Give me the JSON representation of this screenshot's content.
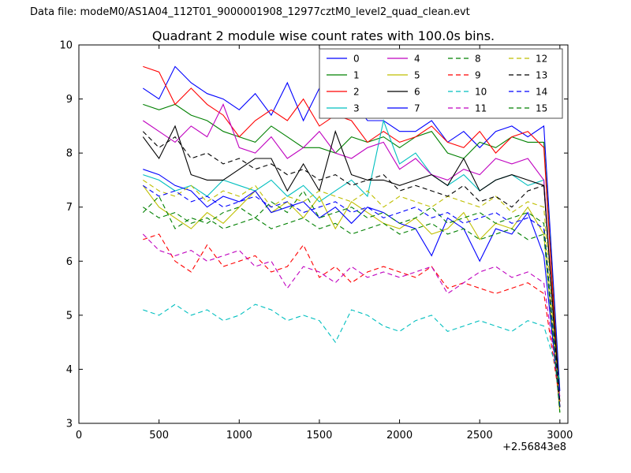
{
  "header": {
    "data_file_label": "Data file: modeM0/AS1A04_112T01_9000001908_12977cztM0_level2_quad_clean.evt"
  },
  "chart_data": {
    "type": "line",
    "title": "Quadrant 2 module wise count rates with 100.0s bins.",
    "xlabel": "",
    "ylabel": "",
    "xlim": [
      0,
      3050
    ],
    "ylim": [
      3,
      10
    ],
    "xticks": [
      0,
      500,
      1000,
      1500,
      2000,
      2500,
      3000
    ],
    "yticks": [
      3,
      4,
      5,
      6,
      7,
      8,
      9,
      10
    ],
    "x_offset_text": "+2.56843e8",
    "grid": false,
    "legend_position": "upper center",
    "x": [
      400,
      500,
      600,
      700,
      800,
      900,
      1000,
      1100,
      1200,
      1300,
      1400,
      1500,
      1600,
      1700,
      1800,
      1900,
      2000,
      2100,
      2200,
      2300,
      2400,
      2500,
      2600,
      2700,
      2800,
      2900,
      3000
    ],
    "series": [
      {
        "name": "0",
        "color": "#0000ff",
        "style": "solid",
        "values": [
          9.2,
          9.0,
          9.6,
          9.3,
          9.1,
          9.0,
          8.8,
          9.1,
          8.7,
          9.3,
          8.6,
          9.2,
          9.0,
          9.0,
          8.6,
          8.6,
          8.4,
          8.4,
          8.6,
          8.2,
          8.4,
          8.1,
          8.4,
          8.5,
          8.3,
          8.5,
          3.6
        ]
      },
      {
        "name": "1",
        "color": "#008000",
        "style": "solid",
        "values": [
          8.9,
          8.8,
          8.9,
          8.7,
          8.6,
          8.4,
          8.3,
          8.2,
          8.5,
          8.3,
          8.1,
          8.1,
          8.0,
          8.3,
          8.2,
          8.3,
          8.1,
          8.3,
          8.4,
          8.0,
          7.9,
          8.2,
          8.1,
          8.3,
          8.2,
          8.2,
          3.4
        ]
      },
      {
        "name": "2",
        "color": "#ff0000",
        "style": "solid",
        "values": [
          9.6,
          9.5,
          8.9,
          9.2,
          8.9,
          8.7,
          8.3,
          8.6,
          8.8,
          8.6,
          9.0,
          8.5,
          8.7,
          8.6,
          8.2,
          8.4,
          8.2,
          8.3,
          8.5,
          8.2,
          8.1,
          8.4,
          8.0,
          8.3,
          8.4,
          8.1,
          3.3
        ]
      },
      {
        "name": "3",
        "color": "#00bfbf",
        "style": "solid",
        "values": [
          7.6,
          7.5,
          7.3,
          7.4,
          7.2,
          7.5,
          7.4,
          7.3,
          7.5,
          7.2,
          7.4,
          7.1,
          7.3,
          7.5,
          7.2,
          8.6,
          7.8,
          8.0,
          7.6,
          7.4,
          7.6,
          7.3,
          7.5,
          7.6,
          7.4,
          7.5,
          3.2
        ]
      },
      {
        "name": "4",
        "color": "#bf00bf",
        "style": "solid",
        "values": [
          8.6,
          8.4,
          8.2,
          8.5,
          8.3,
          8.9,
          8.1,
          8.0,
          8.3,
          7.9,
          8.1,
          8.4,
          8.0,
          7.9,
          8.1,
          8.2,
          7.7,
          7.9,
          7.6,
          7.5,
          7.7,
          7.6,
          7.9,
          7.8,
          7.9,
          7.5,
          3.3
        ]
      },
      {
        "name": "5",
        "color": "#bfbf00",
        "style": "solid",
        "values": [
          7.4,
          7.0,
          6.8,
          6.6,
          6.9,
          6.7,
          7.0,
          7.3,
          6.9,
          7.1,
          6.8,
          7.2,
          6.6,
          7.1,
          6.9,
          6.7,
          6.6,
          6.8,
          6.5,
          6.6,
          6.9,
          6.4,
          6.7,
          6.6,
          7.0,
          6.5,
          3.2
        ]
      },
      {
        "name": "6",
        "color": "#000000",
        "style": "solid",
        "values": [
          8.3,
          7.9,
          8.5,
          7.6,
          7.5,
          7.5,
          7.7,
          7.9,
          7.9,
          7.3,
          7.8,
          7.3,
          8.4,
          7.6,
          7.5,
          7.5,
          7.4,
          7.5,
          7.6,
          7.4,
          7.9,
          7.3,
          7.5,
          7.6,
          7.5,
          7.4,
          3.4
        ]
      },
      {
        "name": "7",
        "color": "#0000ff",
        "style": "solid",
        "values": [
          7.7,
          7.6,
          7.4,
          7.3,
          7.0,
          7.2,
          7.1,
          7.3,
          6.9,
          7.0,
          7.1,
          6.8,
          7.0,
          6.7,
          7.0,
          6.9,
          6.7,
          6.6,
          6.1,
          6.8,
          6.6,
          6.0,
          6.6,
          6.5,
          6.9,
          6.1,
          3.3
        ]
      },
      {
        "name": "8",
        "color": "#008000",
        "style": "dashed",
        "values": [
          6.9,
          7.2,
          6.6,
          6.8,
          6.7,
          6.9,
          7.0,
          6.8,
          7.1,
          6.9,
          7.3,
          6.8,
          6.9,
          7.0,
          6.8,
          6.9,
          6.7,
          6.8,
          7.0,
          6.7,
          6.8,
          6.9,
          6.7,
          6.8,
          6.9,
          6.7,
          3.3
        ]
      },
      {
        "name": "9",
        "color": "#ff0000",
        "style": "dashed",
        "values": [
          6.4,
          6.5,
          6.0,
          5.8,
          6.3,
          5.9,
          6.0,
          6.1,
          5.8,
          5.9,
          6.3,
          5.7,
          5.9,
          5.6,
          5.8,
          5.9,
          5.8,
          5.7,
          5.9,
          5.5,
          5.6,
          5.5,
          5.4,
          5.5,
          5.6,
          5.4,
          3.4
        ]
      },
      {
        "name": "10",
        "color": "#00bfbf",
        "style": "dashed",
        "values": [
          5.1,
          5.0,
          5.2,
          5.0,
          5.1,
          4.9,
          5.0,
          5.2,
          5.1,
          4.9,
          5.0,
          4.9,
          4.5,
          5.1,
          5.0,
          4.8,
          4.7,
          4.9,
          5.0,
          4.7,
          4.8,
          4.9,
          4.8,
          4.7,
          4.9,
          4.8,
          3.8
        ]
      },
      {
        "name": "11",
        "color": "#bf00bf",
        "style": "dashed",
        "values": [
          6.5,
          6.2,
          6.1,
          6.2,
          6.0,
          6.1,
          6.2,
          5.9,
          6.0,
          5.5,
          5.9,
          5.8,
          5.6,
          5.9,
          5.7,
          5.8,
          5.7,
          5.8,
          5.9,
          5.4,
          5.6,
          5.8,
          5.9,
          5.7,
          5.8,
          5.6,
          3.5
        ]
      },
      {
        "name": "12",
        "color": "#bfbf00",
        "style": "dashed",
        "values": [
          7.5,
          7.3,
          7.2,
          7.4,
          7.1,
          7.3,
          7.2,
          7.4,
          7.0,
          7.2,
          7.1,
          7.3,
          7.2,
          7.1,
          7.3,
          7.0,
          7.2,
          7.1,
          7.0,
          7.2,
          7.1,
          7.0,
          7.2,
          6.9,
          7.1,
          7.0,
          3.3
        ]
      },
      {
        "name": "13",
        "color": "#000000",
        "style": "dashed",
        "values": [
          8.4,
          8.1,
          8.3,
          7.9,
          8.0,
          7.8,
          7.9,
          7.7,
          7.8,
          7.6,
          7.7,
          7.5,
          7.6,
          7.4,
          7.5,
          7.6,
          7.3,
          7.4,
          7.3,
          7.2,
          7.4,
          7.1,
          7.2,
          7.0,
          7.3,
          7.4,
          3.3
        ]
      },
      {
        "name": "14",
        "color": "#0000ff",
        "style": "dashed",
        "values": [
          7.4,
          7.2,
          7.3,
          7.1,
          7.2,
          7.0,
          7.1,
          7.2,
          7.0,
          7.1,
          6.9,
          7.0,
          7.1,
          6.9,
          7.0,
          6.8,
          6.9,
          7.0,
          6.8,
          6.9,
          6.7,
          6.8,
          6.9,
          6.7,
          6.8,
          6.6,
          3.3
        ]
      },
      {
        "name": "15",
        "color": "#008000",
        "style": "dashed",
        "values": [
          7.0,
          6.8,
          6.9,
          6.7,
          6.8,
          6.6,
          6.7,
          6.8,
          6.6,
          6.7,
          6.8,
          6.6,
          6.7,
          6.5,
          6.6,
          6.7,
          6.5,
          6.6,
          6.7,
          6.5,
          6.6,
          6.4,
          6.5,
          6.6,
          6.4,
          6.5,
          3.2
        ]
      }
    ]
  }
}
